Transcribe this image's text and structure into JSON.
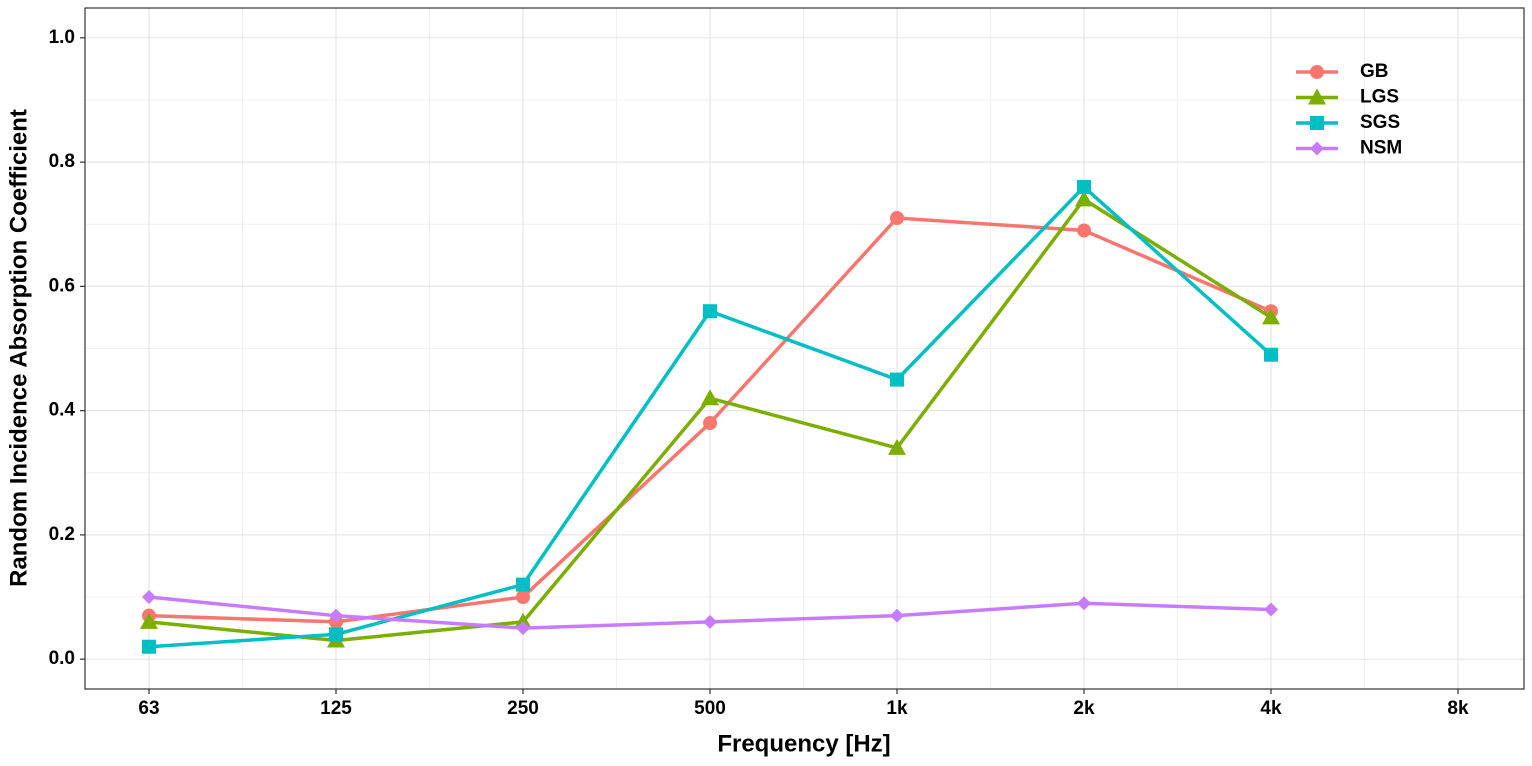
{
  "chart_data": {
    "type": "line",
    "x_label": "Frequency [Hz]",
    "y_label": "Random Incidence Absorption Coefficient",
    "categories": [
      "63",
      "125",
      "250",
      "500",
      "1k",
      "2k",
      "4k",
      "8k"
    ],
    "series": [
      {
        "name": "GB",
        "color": "#F8766D",
        "marker": "circle",
        "values": [
          0.07,
          0.06,
          0.1,
          0.38,
          0.71,
          0.69,
          0.56,
          null
        ]
      },
      {
        "name": "LGS",
        "color": "#7CAE00",
        "marker": "triangle",
        "values": [
          0.06,
          0.03,
          0.06,
          0.42,
          0.34,
          0.74,
          0.55,
          null
        ]
      },
      {
        "name": "SGS",
        "color": "#00BFC4",
        "marker": "square",
        "values": [
          0.02,
          0.04,
          0.12,
          0.56,
          0.45,
          0.76,
          0.49,
          null
        ]
      },
      {
        "name": "NSM",
        "color": "#C77CFF",
        "marker": "diamond",
        "values": [
          0.1,
          0.07,
          0.05,
          0.06,
          0.07,
          0.09,
          0.08,
          null
        ]
      }
    ],
    "ylim": [
      -0.048,
      1.048
    ],
    "yticks": [
      {
        "value": 0,
        "label": "0.0"
      },
      0.2,
      0.4,
      0.6,
      0.8,
      {
        "value": 1,
        "label": "1.0"
      }
    ],
    "grid": true,
    "legend": "top-right"
  }
}
